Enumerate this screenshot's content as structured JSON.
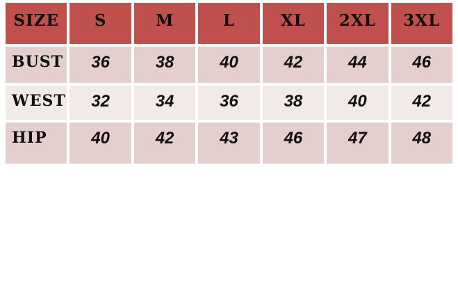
{
  "app": {
    "background_color": "#FFFFFF",
    "description_colors": {
      "header_bg": "#C0504D",
      "row_dark_bg": "#E5CECE",
      "row_light_bg": "#F2E9E9",
      "grid_gap": "#FFFFFF",
      "text": "#101010"
    }
  },
  "chart_data": {
    "type": "table",
    "title": "",
    "columns": [
      "SIZE",
      "S",
      "M",
      "L",
      "XL",
      "2XL",
      "3XL"
    ],
    "rows": [
      [
        "BUST",
        36,
        38,
        40,
        42,
        44,
        46
      ],
      [
        "WEST",
        32,
        34,
        36,
        38,
        40,
        42
      ],
      [
        "HIP",
        40,
        42,
        43,
        46,
        47,
        48
      ]
    ],
    "row_bands": [
      "dark",
      "light",
      "dark"
    ],
    "layout_hints": {
      "header_style": "solid red band, black decorative serif caps, centered",
      "label_alignment": "left",
      "value_alignment": "center",
      "value_style": "bold italic sans-serif",
      "grid": "white 4px gaps between all cells",
      "legend_position": "none"
    }
  }
}
